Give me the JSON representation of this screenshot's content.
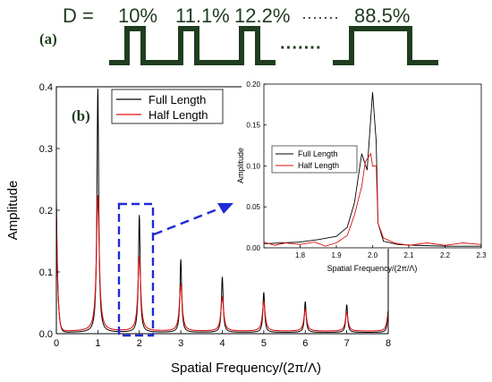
{
  "panel_a": {
    "label": "(a)",
    "prefix": "D =",
    "duty_values": [
      "10%",
      "11.1%",
      "12.2%",
      "88.5%"
    ],
    "top_ellipsis": "·······",
    "mid_ellipsis": "·······",
    "wave_color": "#1f3d1f"
  },
  "chart_data": [
    {
      "id": "main",
      "type": "line",
      "label": "(b)",
      "xlabel": "Spatial Frequency/(2π/Λ)",
      "ylabel": "Amplitude",
      "xlim": [
        0,
        8
      ],
      "ylim": [
        0,
        0.4
      ],
      "xticks": [
        "0",
        "1",
        "2",
        "3",
        "4",
        "5",
        "6",
        "7",
        "8"
      ],
      "yticks": [
        "0.0",
        "0.1",
        "0.2",
        "0.3",
        "0.4"
      ],
      "legend_position": "top-center",
      "series": [
        {
          "name": "Full Length",
          "color": "#000000",
          "baseline": 0.002,
          "edge_value": 0.22,
          "peaks": [
            {
              "x": 1,
              "value": 0.395
            },
            {
              "x": 2,
              "value": 0.19
            },
            {
              "x": 3,
              "value": 0.118
            },
            {
              "x": 4,
              "value": 0.09
            },
            {
              "x": 5,
              "value": 0.065
            },
            {
              "x": 6,
              "value": 0.05
            },
            {
              "x": 7,
              "value": 0.045
            },
            {
              "x": 8,
              "value": 0.035
            }
          ]
        },
        {
          "name": "Half Length",
          "color": "#dd1111",
          "baseline": 0.004,
          "edge_value": 0.2,
          "peaks": [
            {
              "x": 1,
              "value": 0.22
            },
            {
              "x": 2,
              "value": 0.12
            },
            {
              "x": 3,
              "value": 0.075
            },
            {
              "x": 4,
              "value": 0.055
            },
            {
              "x": 5,
              "value": 0.048
            },
            {
              "x": 6,
              "value": 0.035
            },
            {
              "x": 7,
              "value": 0.03
            },
            {
              "x": 8,
              "value": 0.028
            }
          ]
        }
      ]
    },
    {
      "id": "inset",
      "type": "line",
      "xlabel": "Spatial Frequency/(2π/Λ)",
      "ylabel": "Amplitude",
      "xlim": [
        1.7,
        2.3
      ],
      "ylim": [
        0,
        0.2
      ],
      "xticks": [
        "1.8",
        "1.9",
        "2.0",
        "2.1",
        "2.2",
        "2.3"
      ],
      "yticks": [
        "0.00",
        "0.05",
        "0.10",
        "0.15",
        "0.20"
      ],
      "legend_position": "middle-left",
      "series": [
        {
          "name": "Full Length",
          "color": "#000000",
          "points": [
            [
              1.7,
              0.005
            ],
            [
              1.75,
              0.006
            ],
            [
              1.8,
              0.007
            ],
            [
              1.85,
              0.01
            ],
            [
              1.9,
              0.014
            ],
            [
              1.93,
              0.025
            ],
            [
              1.95,
              0.055
            ],
            [
              1.97,
              0.115
            ],
            [
              1.985,
              0.095
            ],
            [
              2.0,
              0.19
            ],
            [
              2.01,
              0.13
            ],
            [
              2.015,
              0.03
            ],
            [
              2.03,
              0.008
            ],
            [
              2.07,
              0.004
            ],
            [
              2.12,
              0.003
            ],
            [
              2.2,
              0.002
            ],
            [
              2.3,
              0.002
            ]
          ]
        },
        {
          "name": "Half Length",
          "color": "#dd1111",
          "points": [
            [
              1.7,
              0.007
            ],
            [
              1.73,
              0.003
            ],
            [
              1.76,
              0.006
            ],
            [
              1.8,
              0.004
            ],
            [
              1.84,
              0.007
            ],
            [
              1.87,
              0.002
            ],
            [
              1.9,
              0.006
            ],
            [
              1.93,
              0.015
            ],
            [
              1.95,
              0.04
            ],
            [
              1.97,
              0.075
            ],
            [
              1.98,
              0.105
            ],
            [
              1.995,
              0.115
            ],
            [
              2.0,
              0.1
            ],
            [
              2.01,
              0.1
            ],
            [
              2.015,
              0.03
            ],
            [
              2.03,
              0.012
            ],
            [
              2.06,
              0.006
            ],
            [
              2.1,
              0.003
            ],
            [
              2.15,
              0.006
            ],
            [
              2.2,
              0.003
            ],
            [
              2.25,
              0.006
            ],
            [
              2.3,
              0.004
            ]
          ]
        }
      ]
    }
  ]
}
